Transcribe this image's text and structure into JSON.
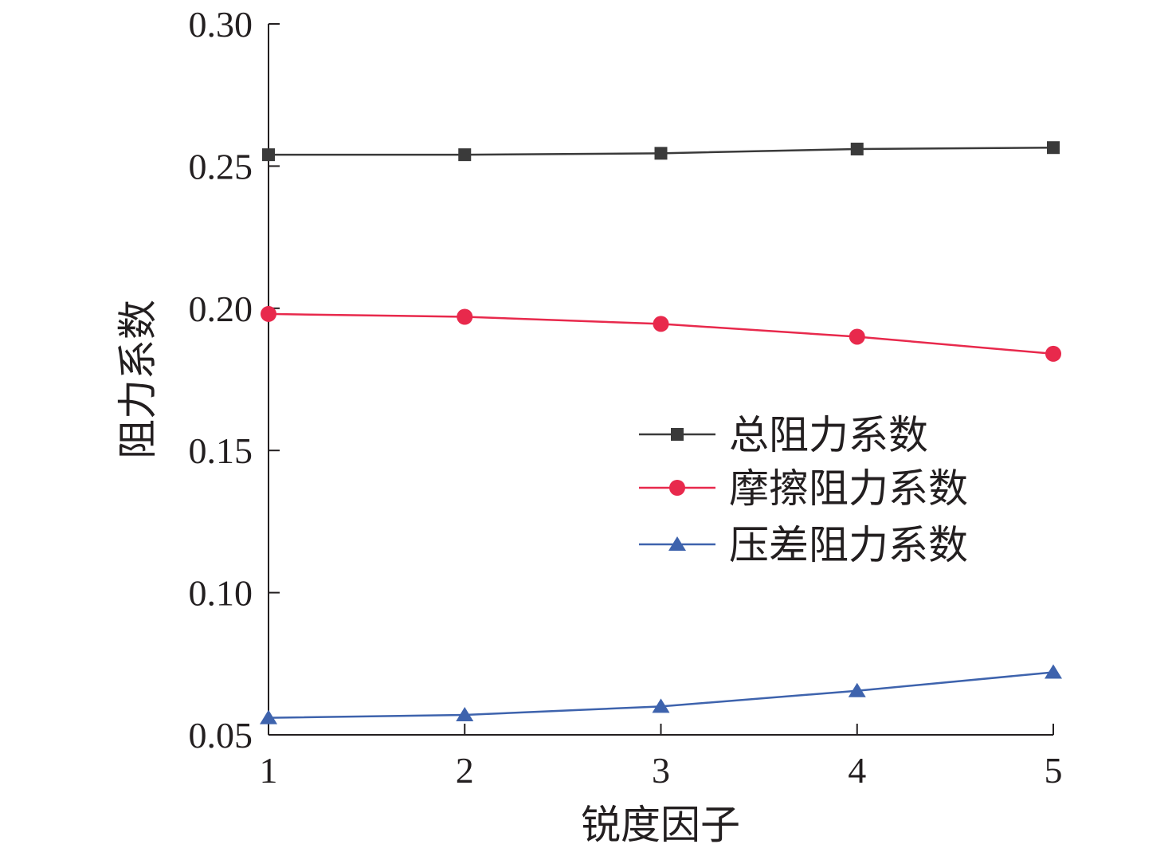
{
  "chart_data": {
    "type": "line",
    "xlabel": "锐度因子",
    "ylabel": "阻力系数",
    "x": [
      1,
      2,
      3,
      4,
      5
    ],
    "xlim": [
      1,
      5
    ],
    "ylim": [
      0.05,
      0.3
    ],
    "xticks": [
      "1",
      "2",
      "3",
      "4",
      "5"
    ],
    "yticks": [
      "0.05",
      "0.10",
      "0.15",
      "0.20",
      "0.25",
      "0.30"
    ],
    "grid": false,
    "legend_position": "center-right",
    "series": [
      {
        "name": "总阻力系数",
        "values": [
          0.254,
          0.254,
          0.2545,
          0.256,
          0.2565
        ],
        "color": "#3a3a3a",
        "marker": "square"
      },
      {
        "name": "摩擦阻力系数",
        "values": [
          0.198,
          0.197,
          0.1945,
          0.19,
          0.184
        ],
        "color": "#e8294c",
        "marker": "circle"
      },
      {
        "name": "压差阻力系数",
        "values": [
          0.056,
          0.057,
          0.06,
          0.0655,
          0.072
        ],
        "color": "#3e63ad",
        "marker": "triangle"
      }
    ]
  }
}
